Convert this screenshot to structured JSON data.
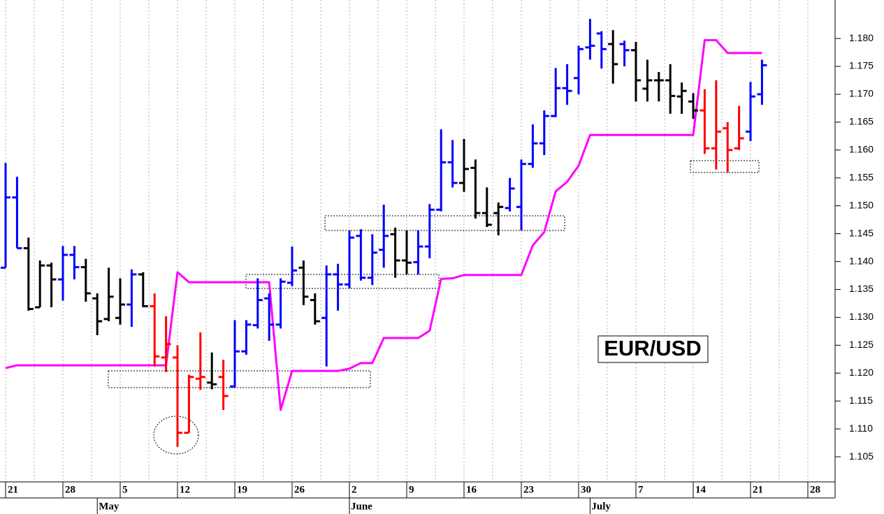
{
  "chart_data": {
    "type": "ohlc",
    "title": "EUR/USD",
    "categories": [
      "21",
      null,
      null,
      null,
      null,
      "28",
      null,
      null,
      null,
      null,
      "5",
      null,
      null,
      null,
      null,
      "12",
      null,
      null,
      null,
      null,
      "19",
      null,
      null,
      null,
      null,
      "26",
      null,
      null,
      null,
      null,
      "2",
      null,
      null,
      null,
      null,
      "9",
      null,
      null,
      null,
      null,
      "16",
      null,
      null,
      null,
      null,
      "23",
      null,
      null,
      null,
      null,
      "30",
      null,
      null,
      null,
      null,
      "7",
      null,
      null,
      null,
      null,
      "14",
      null,
      null,
      null,
      null,
      "21",
      null,
      null,
      null,
      null,
      "28"
    ],
    "month_categories": [
      null,
      null,
      null,
      null,
      null,
      null,
      null,
      null,
      "May",
      null,
      null,
      null,
      null,
      null,
      null,
      null,
      null,
      null,
      null,
      null,
      null,
      null,
      null,
      null,
      null,
      null,
      null,
      null,
      null,
      null,
      "June",
      null,
      null,
      null,
      null,
      null,
      null,
      null,
      null,
      null,
      null,
      null,
      null,
      null,
      null,
      null,
      null,
      null,
      null,
      null,
      null,
      "July",
      null,
      null,
      null,
      null,
      null,
      null,
      null,
      null,
      null,
      null,
      null,
      null,
      null,
      null,
      null,
      null,
      null,
      null,
      null
    ],
    "open": [
      1.1389,
      1.1515,
      1.1424,
      1.1318,
      1.1393,
      1.1368,
      1.1412,
      1.139,
      1.1334,
      1.1297,
      1.1299,
      1.1323,
      1.1377,
      1.132,
      1.1228,
      1.1228,
      1.1093,
      1.119,
      1.1183,
      1.1193,
      1.1176,
      1.1239,
      1.1286,
      1.1334,
      1.1287,
      1.1362,
      1.1389,
      1.1331,
      1.1299,
      1.1377,
      1.1359,
      1.1446,
      1.1371,
      1.1421,
      1.1449,
      1.1402,
      1.1399,
      1.1427,
      1.1493,
      1.1578,
      1.1541,
      1.1568,
      1.1487,
      1.1487,
      1.1496,
      1.1498,
      1.1575,
      1.1612,
      1.1661,
      1.1711,
      1.1729,
      1.1784,
      1.1809,
      1.179,
      1.179,
      1.1779,
      1.171,
      1.1725,
      1.1725,
      1.1696,
      1.1687,
      1.1671,
      1.1603,
      1.1639,
      1.1603,
      1.1633,
      1.17,
      null,
      null,
      null,
      null
    ],
    "high": [
      1.1577,
      1.1552,
      1.1443,
      1.1402,
      1.1398,
      1.1428,
      1.1428,
      1.1405,
      1.1343,
      1.1389,
      1.137,
      1.1386,
      1.1381,
      1.1343,
      1.1302,
      1.125,
      1.1197,
      1.1273,
      1.1237,
      1.1224,
      1.1295,
      1.1295,
      1.137,
      1.1343,
      1.137,
      1.1427,
      1.1402,
      1.1343,
      1.1393,
      1.1396,
      1.1456,
      1.1458,
      1.1449,
      1.1502,
      1.1461,
      1.1456,
      1.1456,
      1.1503,
      1.1637,
      1.1618,
      1.162,
      1.1583,
      1.1533,
      1.1506,
      1.155,
      1.1583,
      1.1646,
      1.1671,
      1.1747,
      1.1754,
      1.1787,
      1.1835,
      1.1813,
      1.1815,
      1.1796,
      1.1794,
      1.1762,
      1.174,
      1.1754,
      1.1721,
      1.1702,
      1.1709,
      1.1725,
      1.165,
      1.1679,
      1.1722,
      1.1762,
      null,
      null,
      null,
      null
    ],
    "low": [
      1.1389,
      1.1424,
      1.1312,
      1.1318,
      1.1318,
      1.133,
      1.1368,
      1.1328,
      1.1268,
      1.1293,
      1.1287,
      1.1283,
      1.1318,
      1.1212,
      1.1202,
      1.1068,
      1.1093,
      1.117,
      1.1171,
      1.1134,
      1.1174,
      1.1233,
      1.128,
      1.1258,
      1.128,
      1.1356,
      1.1322,
      1.1287,
      1.1212,
      1.1312,
      1.1352,
      1.1366,
      1.1358,
      1.1389,
      1.1371,
      1.1377,
      1.1377,
      1.1406,
      1.149,
      1.1533,
      1.1525,
      1.1477,
      1.1462,
      1.1447,
      1.149,
      1.1456,
      1.1568,
      1.1591,
      1.1659,
      1.1681,
      1.17,
      1.1762,
      1.1746,
      1.1719,
      1.175,
      1.1687,
      1.1687,
      1.1687,
      1.1665,
      1.1665,
      1.1656,
      1.1593,
      1.1565,
      1.156,
      1.16,
      1.1616,
      1.1681,
      null,
      null,
      null,
      null
    ],
    "close": [
      1.1515,
      1.1424,
      1.1315,
      1.1393,
      1.1368,
      1.1412,
      1.139,
      1.1343,
      1.1293,
      1.1337,
      1.1323,
      1.1377,
      1.132,
      1.123,
      1.1252,
      1.1093,
      1.1193,
      1.1193,
      1.118,
      1.1159,
      1.1239,
      1.1287,
      1.1331,
      1.1287,
      1.1364,
      1.1384,
      1.1337,
      1.1293,
      1.1377,
      1.1359,
      1.1443,
      1.1371,
      1.1416,
      1.1446,
      1.1402,
      1.1398,
      1.1427,
      1.1493,
      1.1578,
      1.1541,
      1.1566,
      1.1487,
      1.1466,
      1.1498,
      1.1531,
      1.1575,
      1.1612,
      1.1661,
      1.1711,
      1.1706,
      1.1781,
      1.1787,
      1.1781,
      1.1754,
      1.1779,
      1.1725,
      1.1725,
      1.1725,
      1.1697,
      1.1706,
      1.1671,
      1.1603,
      1.1633,
      1.16,
      1.1621,
      1.1696,
      1.1752,
      null,
      null,
      null,
      null
    ],
    "bar_colors": [
      "#0000ff",
      "#0000ff",
      "#000000",
      "#000000",
      "#000000",
      "#0000ff",
      "#0000ff",
      "#000000",
      "#000000",
      "#000000",
      "#000000",
      "#0000ff",
      "#000000",
      "#ff0000",
      "#ff0000",
      "#ff0000",
      "#ff0000",
      "#ff0000",
      "#000000",
      "#ff0000",
      "#0000ff",
      "#0000ff",
      "#0000ff",
      "#0000ff",
      "#0000ff",
      "#0000ff",
      "#000000",
      "#000000",
      "#0000ff",
      "#0000ff",
      "#0000ff",
      "#0000ff",
      "#0000ff",
      "#0000ff",
      "#000000",
      "#000000",
      "#0000ff",
      "#0000ff",
      "#0000ff",
      "#0000ff",
      "#000000",
      "#000000",
      "#000000",
      "#000000",
      "#0000ff",
      "#0000ff",
      "#0000ff",
      "#0000ff",
      "#0000ff",
      "#0000ff",
      "#0000ff",
      "#0000ff",
      "#0000ff",
      "#000000",
      "#0000ff",
      "#000000",
      "#000000",
      "#000000",
      "#000000",
      "#000000",
      "#000000",
      "#ff0000",
      "#ff0000",
      "#ff0000",
      "#ff0000",
      "#0000ff",
      "#0000ff",
      null,
      null,
      null,
      null
    ],
    "stop_line": {
      "color": "#ff00ff",
      "values": [
        1.1209,
        1.1214,
        1.1214,
        1.1214,
        1.1214,
        1.1214,
        1.1214,
        1.1214,
        1.1214,
        1.1214,
        1.1214,
        1.1214,
        1.1214,
        1.1214,
        1.1214,
        1.1381,
        1.1363,
        1.1363,
        1.1363,
        1.1363,
        1.1363,
        1.1363,
        1.1363,
        1.1363,
        1.1134,
        1.1204,
        1.1204,
        1.1204,
        1.1204,
        1.1204,
        1.1208,
        1.1218,
        1.1218,
        1.1263,
        1.1263,
        1.1263,
        1.1263,
        1.1276,
        1.1369,
        1.137,
        1.1376,
        1.1376,
        1.1376,
        1.1376,
        1.1376,
        1.1376,
        1.1429,
        1.1453,
        1.1526,
        1.1543,
        1.1572,
        1.1627,
        1.1627,
        1.1627,
        1.1627,
        1.1627,
        1.1627,
        1.1627,
        1.1627,
        1.1627,
        1.1627,
        1.1797,
        1.1797,
        1.1774,
        1.1774,
        1.1774,
        1.1774,
        null,
        null,
        null,
        null
      ]
    },
    "ylim": [
      1.1005,
      1.1869
    ],
    "yticks": [
      1.105,
      {
        "value": 1.11,
        "label": "1.110"
      },
      1.115,
      {
        "value": 1.12,
        "label": "1.120"
      },
      1.125,
      {
        "value": 1.13,
        "label": "1.130"
      },
      1.135,
      {
        "value": 1.14,
        "label": "1.140"
      },
      1.145,
      {
        "value": 1.15,
        "label": "1.150"
      },
      1.155,
      {
        "value": 1.16,
        "label": "1.160"
      },
      1.165,
      {
        "value": 1.17,
        "label": "1.170"
      },
      1.175,
      {
        "value": 1.18,
        "label": "1.180"
      }
    ]
  }
}
